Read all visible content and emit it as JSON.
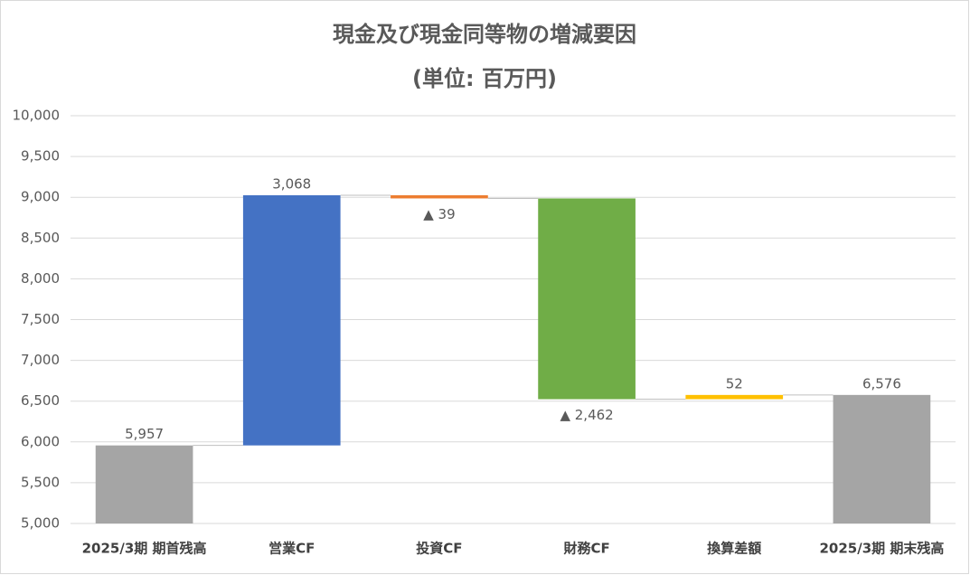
{
  "chart_data": {
    "type": "waterfall",
    "title": "現金及び現金同等物の増減要因",
    "subtitle": "(単位: 百万円)",
    "categories": [
      "2025/3期 期首残高",
      "営業CF",
      "投資CF",
      "財務CF",
      "換算差額",
      "2025/3期 期末残高"
    ],
    "values": [
      5957,
      3068,
      -39,
      -2462,
      52,
      6576
    ],
    "value_labels": [
      "5,957",
      "3,068",
      "▲ 39",
      "▲ 2,462",
      "52",
      "6,576"
    ],
    "measures": [
      "absolute",
      "relative",
      "relative",
      "relative",
      "relative",
      "absolute"
    ],
    "colors": [
      "#a5a5a5",
      "#4472c4",
      "#ed7d31",
      "#70ad47",
      "#ffc000",
      "#a5a5a5"
    ],
    "ylim": [
      5000,
      10000
    ],
    "yticks": [
      {
        "value": 5000,
        "label": "5,000"
      },
      {
        "value": 5500,
        "label": "5,500"
      },
      {
        "value": 6000,
        "label": "6,000"
      },
      {
        "value": 6500,
        "label": "6,500"
      },
      {
        "value": 7000,
        "label": "7,000"
      },
      {
        "value": 7500,
        "label": "7,500"
      },
      {
        "value": 8000,
        "label": "8,000"
      },
      {
        "value": 8500,
        "label": "8,500"
      },
      {
        "value": 9000,
        "label": "9,000"
      },
      {
        "value": 9500,
        "label": "9,500"
      },
      {
        "value": 10000,
        "label": "10,000"
      }
    ],
    "grid": true
  }
}
